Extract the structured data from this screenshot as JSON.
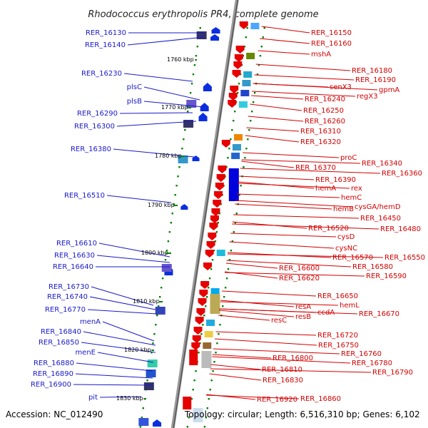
{
  "title": "Rhodococcus erythropolis PR4, complete genome",
  "footer": {
    "accession": "Accession: NC_012490",
    "topology": "Topology: circular; Length: 6,516,310 bp; Genes: 6,102"
  },
  "colors": {
    "left_label": "#1a1acc",
    "right_label": "#d40000",
    "axis": "#888888",
    "tick": "#008000"
  },
  "kbp_markers": [
    "1760 kbp",
    "1770 kbp",
    "1780 kbp",
    "1790 kbp",
    "1800 kbp",
    "1810 kbp",
    "1820 kbp",
    "1830 kbp"
  ],
  "left_labels": [
    "RER_16130",
    "RER_16140",
    "RER_16230",
    "plsC",
    "plsB",
    "RER_16290",
    "RER_16300",
    "RER_16380",
    "RER_16510",
    "RER_16610",
    "RER_16630",
    "RER_16640",
    "RER_16730",
    "RER_16740",
    "RER_16770",
    "menA",
    "RER_16840",
    "RER_16850",
    "menE",
    "RER_16880",
    "RER_16890",
    "RER_16900",
    "pit"
  ],
  "right_labels": [
    "RER_16150",
    "RER_16160",
    "mshA",
    "RER_16180",
    "RER_16190",
    "senX3",
    "gpmA",
    "regX3",
    "RER_16240",
    "RER_16250",
    "RER_16260",
    "RER_16310",
    "RER_16320",
    "proC",
    "RER_16340",
    "RER_16370",
    "RER_16360",
    "RER_16390",
    "hemA",
    "rex",
    "hemC",
    "cysGA/hemD",
    "hemB",
    "RER_16450",
    "RER_16520",
    "RER_16480",
    "cysD",
    "cysNC",
    "RER_16570",
    "RER_16550",
    "RER_16580",
    "RER_16600",
    "RER_16590",
    "RER_16620",
    "RER_16650",
    "hemL",
    "resA",
    "RER_16670",
    "ccdA",
    "resB",
    "resC",
    "RER_16720",
    "RER_16750",
    "RER_16760",
    "RER_16800",
    "RER_16780",
    "RER_16810",
    "RER_16790",
    "RER_16830",
    "RER_16920",
    "RER_16860"
  ]
}
